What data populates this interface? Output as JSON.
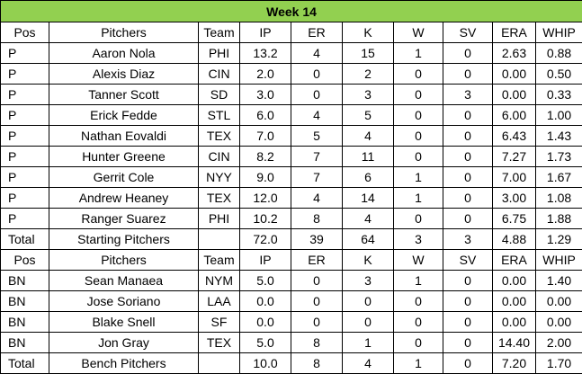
{
  "title": "Week 14",
  "columns": [
    "Pos",
    "Pitchers",
    "Team",
    "IP",
    "ER",
    "K",
    "W",
    "SV",
    "ERA",
    "WHIP"
  ],
  "starting": {
    "rows": [
      [
        "P",
        "Aaron Nola",
        "PHI",
        "13.2",
        "4",
        "15",
        "1",
        "0",
        "2.63",
        "0.88"
      ],
      [
        "P",
        "Alexis Diaz",
        "CIN",
        "2.0",
        "0",
        "2",
        "0",
        "0",
        "0.00",
        "0.50"
      ],
      [
        "P",
        "Tanner Scott",
        "SD",
        "3.0",
        "0",
        "3",
        "0",
        "3",
        "0.00",
        "0.33"
      ],
      [
        "P",
        "Erick Fedde",
        "STL",
        "6.0",
        "4",
        "5",
        "0",
        "0",
        "6.00",
        "1.00"
      ],
      [
        "P",
        "Nathan Eovaldi",
        "TEX",
        "7.0",
        "5",
        "4",
        "0",
        "0",
        "6.43",
        "1.43"
      ],
      [
        "P",
        "Hunter Greene",
        "CIN",
        "8.2",
        "7",
        "11",
        "0",
        "0",
        "7.27",
        "1.73"
      ],
      [
        "P",
        "Gerrit Cole",
        "NYY",
        "9.0",
        "7",
        "6",
        "1",
        "0",
        "7.00",
        "1.67"
      ],
      [
        "P",
        "Andrew Heaney",
        "TEX",
        "12.0",
        "4",
        "14",
        "1",
        "0",
        "3.00",
        "1.08"
      ],
      [
        "P",
        "Ranger Suarez",
        "PHI",
        "10.2",
        "8",
        "4",
        "0",
        "0",
        "6.75",
        "1.88"
      ]
    ],
    "total": [
      "Total",
      "Starting Pitchers",
      "",
      "72.0",
      "39",
      "64",
      "3",
      "3",
      "4.88",
      "1.29"
    ]
  },
  "bench": {
    "rows": [
      [
        "BN",
        "Sean Manaea",
        "NYM",
        "5.0",
        "0",
        "3",
        "1",
        "0",
        "0.00",
        "1.40"
      ],
      [
        "BN",
        "Jose Soriano",
        "LAA",
        "0.0",
        "0",
        "0",
        "0",
        "0",
        "0.00",
        "0.00"
      ],
      [
        "BN",
        "Blake Snell",
        "SF",
        "0.0",
        "0",
        "0",
        "0",
        "0",
        "0.00",
        "0.00"
      ],
      [
        "BN",
        "Jon Gray",
        "TEX",
        "5.0",
        "8",
        "1",
        "0",
        "0",
        "14.40",
        "2.00"
      ]
    ],
    "total": [
      "Total",
      "Bench Pitchers",
      "",
      "10.0",
      "8",
      "4",
      "1",
      "0",
      "7.20",
      "1.70"
    ]
  },
  "colors": {
    "title_background": "#92d050",
    "border": "#000000"
  }
}
